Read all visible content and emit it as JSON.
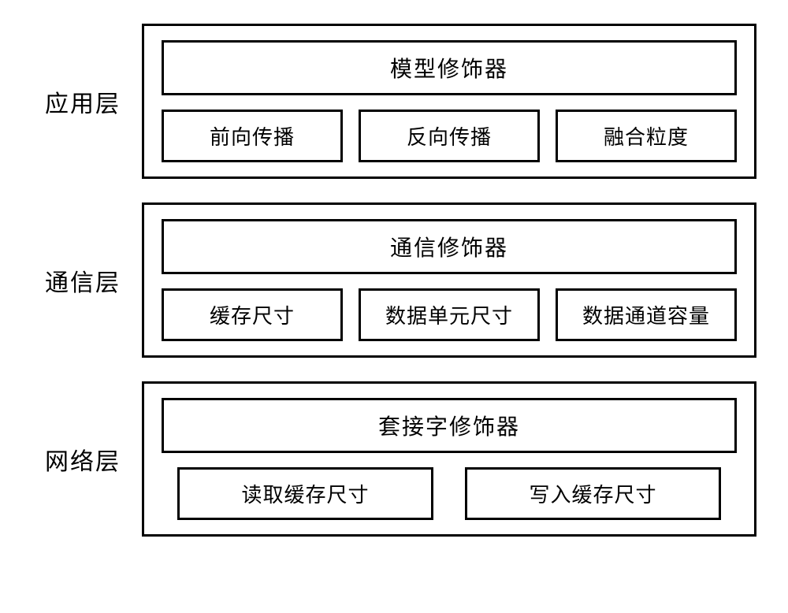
{
  "layers": [
    {
      "label": "应用层",
      "header": "模型修饰器",
      "items": [
        "前向传播",
        "反向传播",
        "融合粒度"
      ],
      "layout": "three"
    },
    {
      "label": "通信层",
      "header": "通信修饰器",
      "items": [
        "缓存尺寸",
        "数据单元尺寸",
        "数据通道容量"
      ],
      "layout": "three"
    },
    {
      "label": "网络层",
      "header": "套接字修饰器",
      "items": [
        "读取缓存尺寸",
        "写入缓存尺寸"
      ],
      "layout": "two"
    }
  ],
  "styling": {
    "background_color": "#ffffff",
    "border_color": "#000000",
    "text_color": "#000000",
    "border_width": 3,
    "label_fontsize": 30,
    "header_fontsize": 28,
    "item_fontsize": 26,
    "font_family": "KaiTi"
  }
}
